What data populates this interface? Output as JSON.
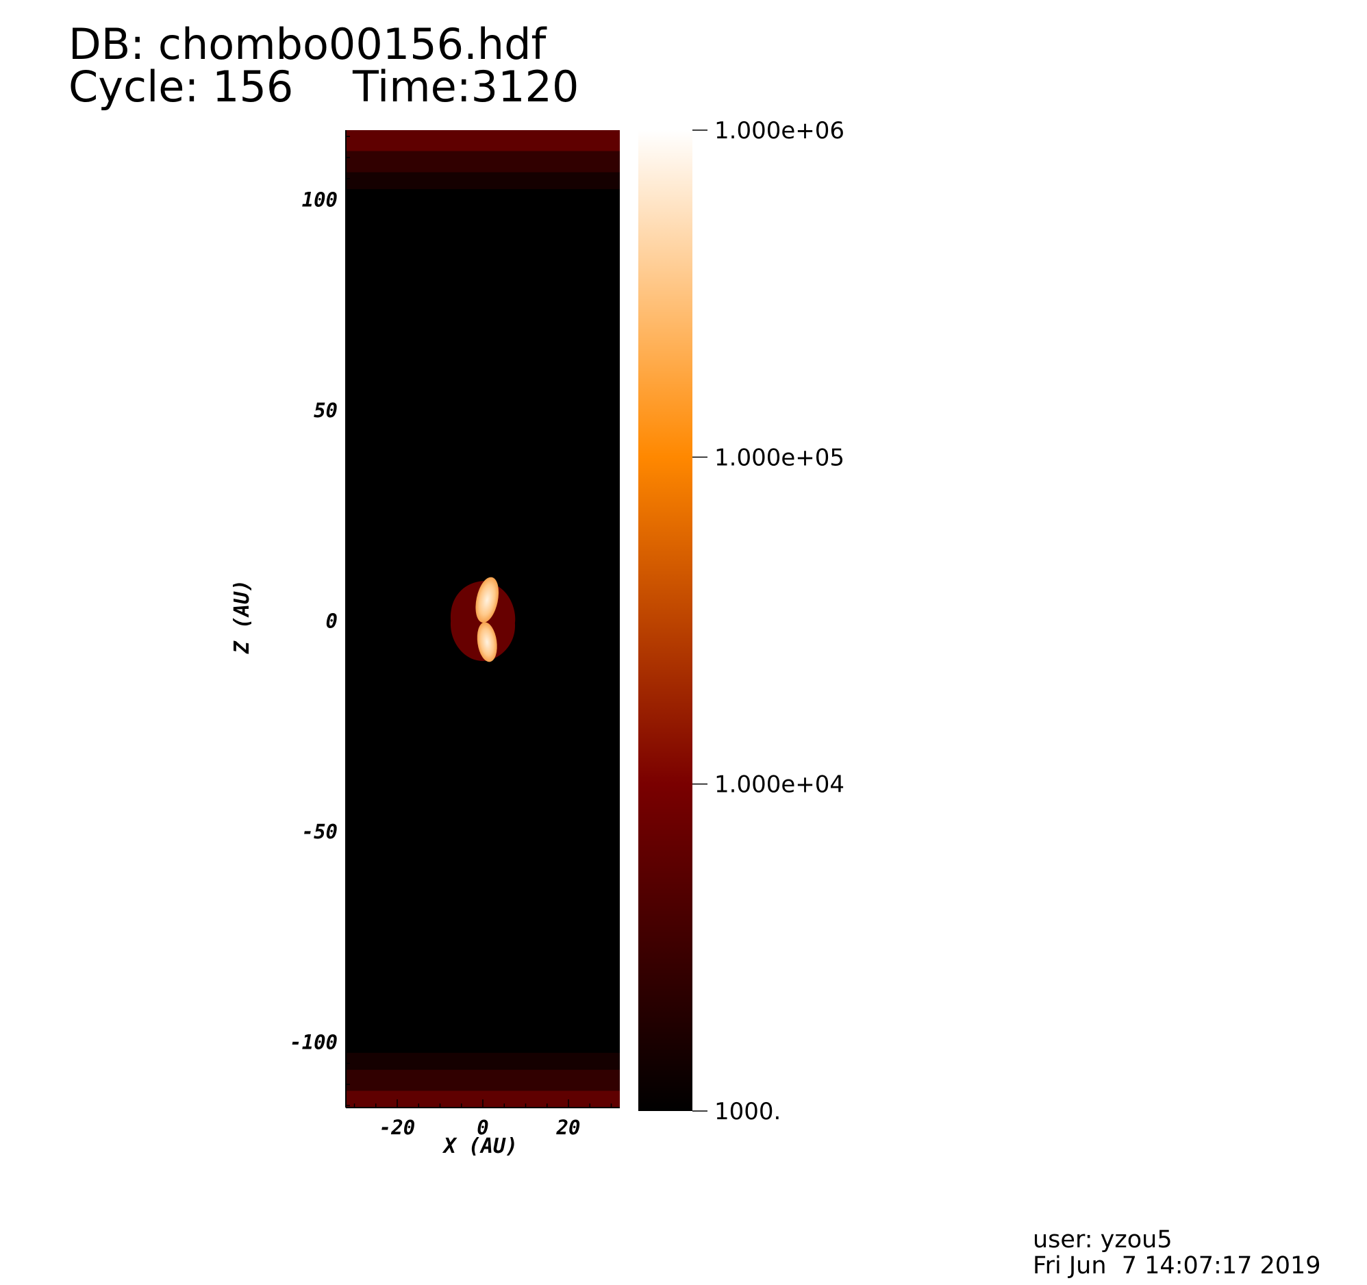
{
  "header": {
    "db_label": "DB: chombo00156.hdf",
    "cycle_label": "Cycle: 156",
    "time_label": "Time:3120"
  },
  "footer": {
    "user_label": "user: yzou5",
    "date_label": "Fri Jun  7 14:07:17 2019"
  },
  "chart_data": {
    "type": "heatmap",
    "title": "",
    "xlabel": "X (AU)",
    "ylabel": "Z (AU)",
    "xlim": [
      -32,
      32
    ],
    "ylim": [
      -115.5,
      116.5
    ],
    "x_ticks": [
      {
        "value": -20,
        "label": "-20"
      },
      {
        "value": 0,
        "label": "0"
      },
      {
        "value": 20,
        "label": "20"
      }
    ],
    "y_ticks": [
      {
        "value": 100,
        "label": "100"
      },
      {
        "value": 50,
        "label": "50"
      },
      {
        "value": 0,
        "label": "0"
      },
      {
        "value": -50,
        "label": "-50"
      },
      {
        "value": -100,
        "label": "-100"
      }
    ],
    "colorbar": {
      "scale": "log",
      "min": 1000,
      "max": 1000000,
      "ticks": [
        {
          "value": 1000000,
          "label": "1.000e+06"
        },
        {
          "value": 100000,
          "label": "1.000e+05"
        },
        {
          "value": 10000,
          "label": "1.000e+04"
        },
        {
          "value": 1000,
          "label": "1000."
        }
      ],
      "colors": [
        "#000000",
        "#7a0000",
        "#ff8800",
        "#ffffff"
      ]
    },
    "background_value": 1000,
    "boundary_bands": [
      {
        "z_range": [
          111.5,
          116.5
        ],
        "value": 6000
      },
      {
        "z_range": [
          106.5,
          111.5
        ],
        "value": 2500
      },
      {
        "z_range": [
          102.5,
          106.5
        ],
        "value": 1500
      },
      {
        "z_range": [
          -106.5,
          -102.5
        ],
        "value": 1500
      },
      {
        "z_range": [
          -111.5,
          -106.5
        ],
        "value": 2500
      },
      {
        "z_range": [
          -115.5,
          -111.5
        ],
        "value": 6000
      }
    ],
    "features": [
      {
        "name": "",
        "shape": "envelope",
        "x_center": 0,
        "z_center": 0,
        "x_extent": [
          -8,
          7
        ],
        "z_extent": [
          -9,
          10
        ],
        "value": 7000
      },
      {
        "name": "",
        "shape": "upper-lobe",
        "x_center": 1,
        "z_center": 5,
        "x_extent": [
          -2,
          3
        ],
        "z_extent": [
          1,
          12
        ],
        "value": 300000
      },
      {
        "name": "",
        "shape": "lower-lobe",
        "x_center": 1,
        "z_center": -5,
        "x_extent": [
          -1.5,
          3
        ],
        "z_extent": [
          -10.5,
          -1
        ],
        "value": 250000
      }
    ]
  }
}
